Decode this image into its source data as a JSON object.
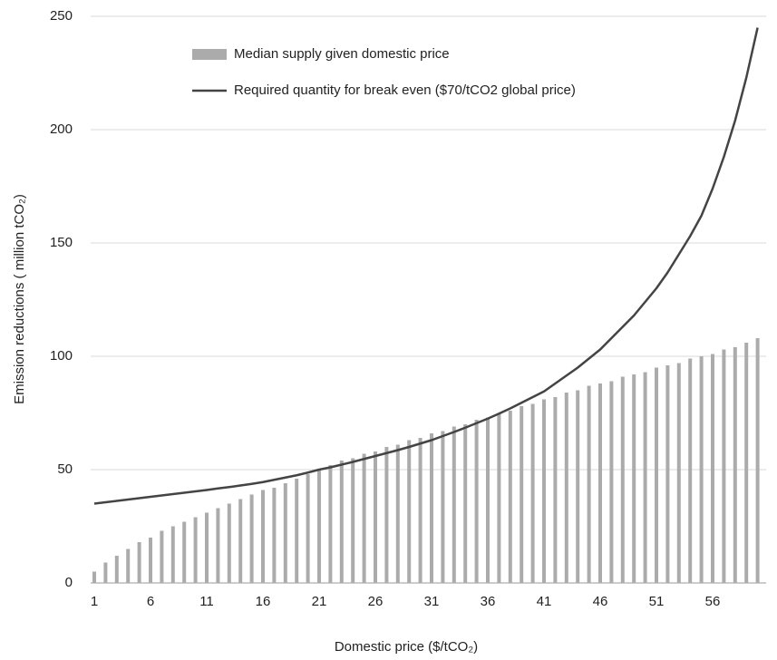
{
  "chart_data": {
    "type": "bar+line",
    "x_label": "Domestic price ($/tCO₂)",
    "y_label": "Emission reductions ( million tCO₂)",
    "categories": [
      "1",
      null,
      null,
      null,
      null,
      "6",
      null,
      null,
      null,
      null,
      "11",
      null,
      null,
      null,
      null,
      "16",
      null,
      null,
      null,
      null,
      "21",
      null,
      null,
      null,
      null,
      "26",
      null,
      null,
      null,
      null,
      "31",
      null,
      null,
      null,
      null,
      "36",
      null,
      null,
      null,
      null,
      "41",
      null,
      null,
      null,
      null,
      "46",
      null,
      null,
      null,
      null,
      "51",
      null,
      null,
      null,
      null,
      "56",
      null,
      null,
      null,
      null
    ],
    "series": [
      {
        "name": "Median supply given domestic price",
        "type": "bar",
        "color": "#ababab",
        "values": [
          5,
          9,
          12,
          15,
          18,
          20,
          23,
          25,
          27,
          29,
          31,
          33,
          35,
          37,
          39,
          41,
          42,
          44,
          46,
          48,
          50,
          52,
          54,
          55,
          57,
          58,
          60,
          61,
          63,
          64,
          66,
          67,
          69,
          70,
          72,
          73,
          75,
          76,
          78,
          79,
          81,
          82,
          84,
          85,
          87,
          88,
          89,
          91,
          92,
          93,
          95,
          96,
          97,
          99,
          100,
          101,
          103,
          104,
          106,
          108
        ]
      },
      {
        "name": "Required quantity for break even ($70/tCO2 global price)",
        "type": "line",
        "color": "#444444",
        "values": [
          35,
          35.6,
          36.2,
          36.8,
          37.4,
          38,
          38.6,
          39.2,
          39.8,
          40.4,
          41,
          41.7,
          42.3,
          43,
          43.7,
          44.5,
          45.5,
          46.5,
          47.5,
          48.7,
          50,
          51,
          52.2,
          53.4,
          54.7,
          56,
          57.3,
          58.6,
          60,
          61.5,
          63,
          64.8,
          66.6,
          68.5,
          70.5,
          72.5,
          74.7,
          77,
          79.5,
          82,
          84.5,
          88,
          91.5,
          95,
          99,
          103,
          108,
          113,
          118,
          124,
          130,
          137,
          145,
          153,
          162,
          174,
          188,
          204,
          223,
          245
        ]
      }
    ],
    "ylim": [
      0,
      250
    ],
    "yticks": [
      0,
      50,
      100,
      150,
      200,
      250
    ],
    "grid": true,
    "legend": "top"
  }
}
